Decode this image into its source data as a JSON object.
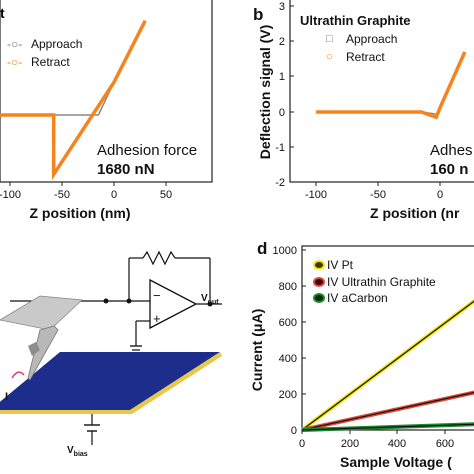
{
  "panel_a": {
    "legend": {
      "title_fragment": "t",
      "approach": "Approach",
      "retract": "Retract"
    },
    "xlabel": "Z position (nm)",
    "xticks": [
      "-100",
      "-50",
      "0",
      "50"
    ],
    "annotation": {
      "line1": "Adhesion force",
      "line2": "1680 nN"
    }
  },
  "panel_b": {
    "letter": "b",
    "title": "Ultrathin Graphite",
    "legend": {
      "approach": "Approach",
      "retract": "Retract"
    },
    "ylabel": "Deflection signal (V)",
    "xlabel": "Z position (nr",
    "xticks": [
      "-100",
      "-50",
      "0"
    ],
    "yticks": [
      "3",
      "2",
      "1",
      "0",
      "-1",
      "-2"
    ],
    "annotation": {
      "line1": "Adhes",
      "line2": "160 n"
    }
  },
  "panel_c": {
    "vout": "V",
    "vout_sub": "out",
    "vbias": "V",
    "vbias_sub": "bias",
    "current_label": "I"
  },
  "panel_d": {
    "letter": "d",
    "ylabel": "Current (μA)",
    "xlabel": "Sample Voltage (",
    "yticks": [
      "1000",
      "800",
      "600",
      "400",
      "200",
      "0"
    ],
    "xticks": [
      "0",
      "200",
      "400",
      "600"
    ],
    "legend": [
      "IV Pt",
      "IV Ultrathin Graphite",
      "IV aCarbon"
    ],
    "colors": {
      "pt": "#f1e60a",
      "graphite": "#e0473a",
      "acarbon": "#1c8a2e",
      "retract": "#f5841f",
      "approach": "#888888",
      "substrate": "#1d2d8c"
    }
  },
  "chart_data": [
    {
      "type": "line",
      "title": "",
      "xlabel": "Z position (nm)",
      "ylabel": "",
      "xlim": [
        -125,
        50
      ],
      "series": [
        {
          "name": "Approach",
          "x": [
            -130,
            -25,
            -15,
            0,
            30
          ],
          "y": [
            0,
            0,
            0,
            0.8,
            2.3
          ]
        },
        {
          "name": "Retract",
          "x": [
            -130,
            -58,
            -58,
            0,
            30
          ],
          "y": [
            0,
            0,
            -1.45,
            0.8,
            2.3
          ]
        }
      ],
      "annotation": "Adhesion force 1680 nN"
    },
    {
      "type": "line",
      "title": "Ultrathin Graphite",
      "xlabel": "Z position (nm)",
      "ylabel": "Deflection signal (V)",
      "ylim": [
        -2,
        3
      ],
      "series": [
        {
          "name": "Approach",
          "x": [
            -100,
            -15,
            -3,
            0,
            20
          ],
          "y": [
            0,
            0,
            -0.06,
            0.12,
            1.7
          ]
        },
        {
          "name": "Retract",
          "x": [
            -100,
            -15,
            -3,
            0,
            20
          ],
          "y": [
            0,
            0,
            -0.15,
            0.12,
            1.7
          ]
        }
      ],
      "annotation": "160 nN"
    },
    {
      "type": "line",
      "title": "",
      "xlabel": "Sample Voltage",
      "ylabel": "Current (μA)",
      "ylim": [
        0,
        1000
      ],
      "series": [
        {
          "name": "IV Pt",
          "x": [
            0,
            800
          ],
          "y": [
            0,
            790
          ]
        },
        {
          "name": "IV Ultrathin Graphite",
          "x": [
            0,
            800
          ],
          "y": [
            0,
            230
          ]
        },
        {
          "name": "IV aCarbon",
          "x": [
            0,
            800
          ],
          "y": [
            0,
            35
          ]
        }
      ]
    }
  ]
}
